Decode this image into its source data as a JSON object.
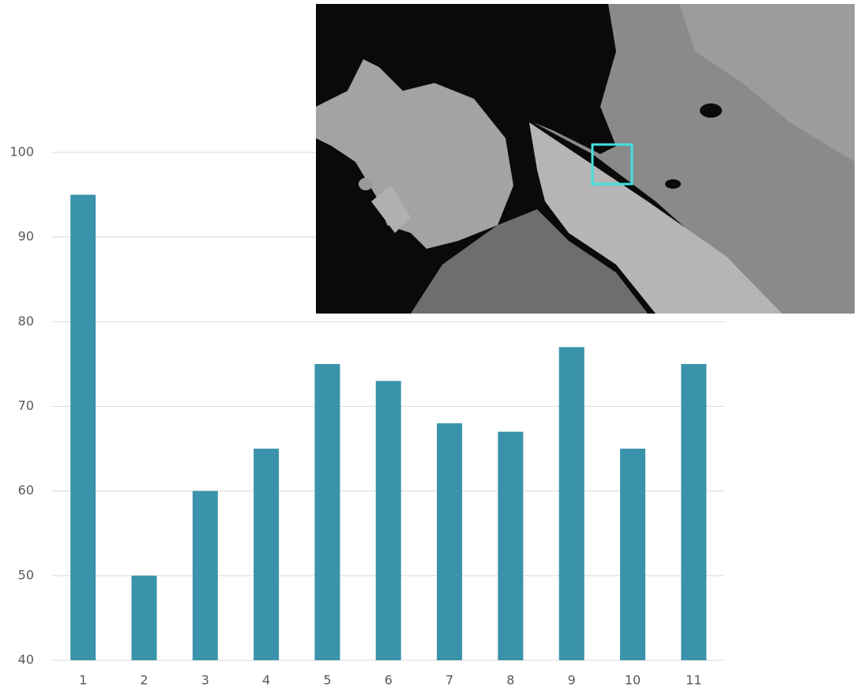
{
  "chart_data": {
    "type": "bar",
    "categories": [
      "1",
      "2",
      "3",
      "4",
      "5",
      "6",
      "7",
      "8",
      "9",
      "10",
      "11"
    ],
    "values": [
      95,
      50,
      60,
      65,
      75,
      73,
      68,
      67,
      77,
      65,
      75
    ],
    "color": "#3a93ab",
    "ylim": [
      40,
      100
    ],
    "yticks": [
      40,
      50,
      60,
      70,
      80,
      90,
      100
    ],
    "grid": true
  }
}
